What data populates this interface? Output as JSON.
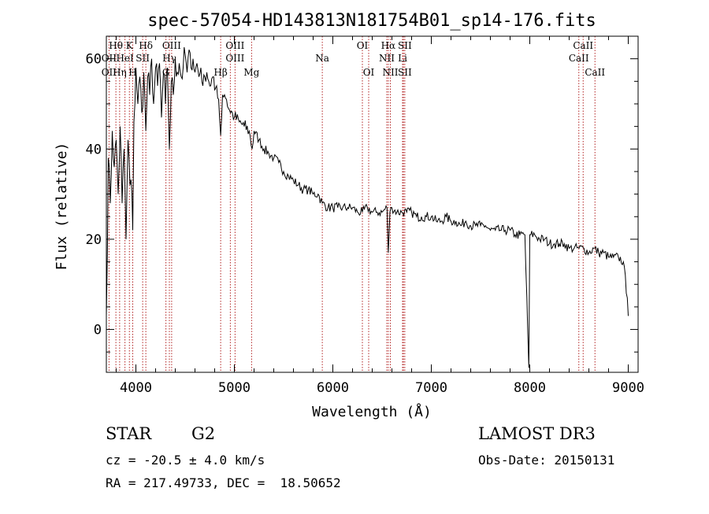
{
  "chart_data": {
    "type": "line",
    "title": "spec-57054-HD143813N181754B01_sp14-176.fits",
    "xlabel": "Wavelength (Å)",
    "ylabel": "Flux (relative)",
    "xlim": [
      3700,
      9100
    ],
    "ylim": [
      -9.5,
      65
    ],
    "xticks": [
      4000,
      5000,
      6000,
      7000,
      8000,
      9000
    ],
    "yticks": [
      0,
      20,
      40,
      60
    ],
    "series": [
      {
        "name": "spectrum",
        "x": [
          3700,
          3720,
          3740,
          3760,
          3780,
          3800,
          3820,
          3840,
          3860,
          3880,
          3900,
          3920,
          3940,
          3960,
          3968,
          3980,
          4000,
          4020,
          4040,
          4060,
          4080,
          4101,
          4120,
          4140,
          4160,
          4180,
          4200,
          4220,
          4240,
          4260,
          4280,
          4300,
          4320,
          4340,
          4360,
          4380,
          4400,
          4420,
          4440,
          4460,
          4480,
          4500,
          4520,
          4540,
          4560,
          4580,
          4600,
          4620,
          4640,
          4660,
          4680,
          4700,
          4720,
          4740,
          4760,
          4780,
          4800,
          4820,
          4840,
          4861,
          4880,
          4900,
          4920,
          4940,
          4960,
          4980,
          5000,
          5050,
          5100,
          5150,
          5180,
          5200,
          5250,
          5300,
          5350,
          5400,
          5450,
          5500,
          5550,
          5600,
          5650,
          5700,
          5750,
          5800,
          5850,
          5893,
          5950,
          6000,
          6050,
          6100,
          6150,
          6200,
          6250,
          6300,
          6350,
          6400,
          6450,
          6500,
          6550,
          6563,
          6580,
          6600,
          6650,
          6700,
          6750,
          6800,
          6850,
          6900,
          6950,
          7000,
          7050,
          7100,
          7150,
          7200,
          7250,
          7300,
          7350,
          7400,
          7450,
          7500,
          7550,
          7600,
          7650,
          7700,
          7750,
          7800,
          7850,
          7900,
          7950,
          7990,
          8000,
          8010,
          8050,
          8100,
          8150,
          8200,
          8250,
          8300,
          8350,
          8400,
          8450,
          8500,
          8550,
          8600,
          8650,
          8700,
          8750,
          8800,
          8850,
          8900,
          8950,
          8990,
          9000
        ],
        "y": [
          3,
          38,
          28,
          44,
          36,
          42,
          30,
          45,
          28,
          40,
          20,
          42,
          32,
          30,
          22,
          46,
          58,
          50,
          56,
          48,
          57,
          44,
          56,
          52,
          60,
          50,
          58,
          54,
          59,
          47,
          57,
          50,
          58,
          40,
          55,
          52,
          60,
          57,
          59,
          56,
          58,
          61,
          57,
          62,
          58,
          60,
          57,
          59,
          56,
          58,
          54,
          56,
          57,
          55,
          54,
          56,
          53,
          54,
          51,
          43,
          52,
          52,
          51,
          49,
          48,
          48,
          47,
          46,
          45,
          44,
          40,
          44,
          42,
          40,
          39,
          38,
          37,
          35,
          34,
          33,
          32,
          31,
          31,
          30,
          30,
          28,
          27,
          27,
          27,
          27,
          27,
          27,
          26,
          26,
          27,
          26,
          26,
          26,
          27,
          17,
          26,
          27,
          26,
          26,
          26,
          26,
          25,
          25,
          25,
          25,
          24,
          24,
          25,
          24,
          24,
          23,
          24,
          23,
          23,
          23,
          23,
          22,
          22,
          22,
          22,
          22,
          21,
          21,
          21,
          -8.5,
          21,
          21,
          21,
          20,
          20,
          19,
          19,
          19,
          19,
          18,
          18,
          18,
          18,
          17,
          18,
          17,
          17,
          16,
          16,
          16,
          15,
          7,
          3
        ]
      }
    ],
    "lines": [
      {
        "name": "Hθ",
        "wavelength": 3797
      },
      {
        "name": "OII",
        "wavelength": 3727
      },
      {
        "name": "Hη",
        "wavelength": 3835
      },
      {
        "name": "HeI",
        "wavelength": 3889
      },
      {
        "name": "K",
        "wavelength": 3934
      },
      {
        "name": "H",
        "wavelength": 3968
      },
      {
        "name": "SII",
        "wavelength": 4069
      },
      {
        "name": "Hδ",
        "wavelength": 4101
      },
      {
        "name": "OIII",
        "wavelength": 4363
      },
      {
        "name": "Hγ",
        "wavelength": 4340
      },
      {
        "name": "G",
        "wavelength": 4305
      },
      {
        "name": "Hβ",
        "wavelength": 4861
      },
      {
        "name": "OIII",
        "wavelength": 4959
      },
      {
        "name": "OIII",
        "wavelength": 5007
      },
      {
        "name": "Mg",
        "wavelength": 5175
      },
      {
        "name": "Na",
        "wavelength": 5893
      },
      {
        "name": "OI",
        "wavelength": 6300
      },
      {
        "name": "OI",
        "wavelength": 6364
      },
      {
        "name": "Hα",
        "wavelength": 6563
      },
      {
        "name": "NII",
        "wavelength": 6548
      },
      {
        "name": "NII",
        "wavelength": 6584
      },
      {
        "name": "SII",
        "wavelength": 6717
      },
      {
        "name": "Li",
        "wavelength": 6708
      },
      {
        "name": "SII",
        "wavelength": 6731
      },
      {
        "name": "CaII",
        "wavelength": 8498
      },
      {
        "name": "CaII",
        "wavelength": 8542
      },
      {
        "name": "CaII",
        "wavelength": 8662
      }
    ],
    "label_rows": {
      "top": [
        "Hθ",
        "K",
        "Hδ",
        "OIII",
        "OIII",
        "OI",
        "Hα",
        "SII",
        "CaII"
      ],
      "mid": [
        "OII",
        "HeI",
        "SII",
        "Hγ",
        "OIII",
        "Na",
        "NII",
        "Li",
        "CaII"
      ],
      "low": [
        "OII",
        "Hη",
        "H",
        "G",
        "Hβ",
        "Mg",
        "OI",
        "NII",
        "SII",
        "CaII"
      ]
    }
  },
  "info": {
    "object_class": "STAR",
    "subclass": "G2",
    "survey": "LAMOST DR3",
    "redshift": "cz = -20.5 ± 4.0 km/s",
    "obs_date": "Obs-Date: 20150131",
    "coords": "RA = 217.49733, DEC =  18.50652"
  },
  "colors": {
    "line_marker": "#b22222",
    "spectrum": "#000000"
  }
}
